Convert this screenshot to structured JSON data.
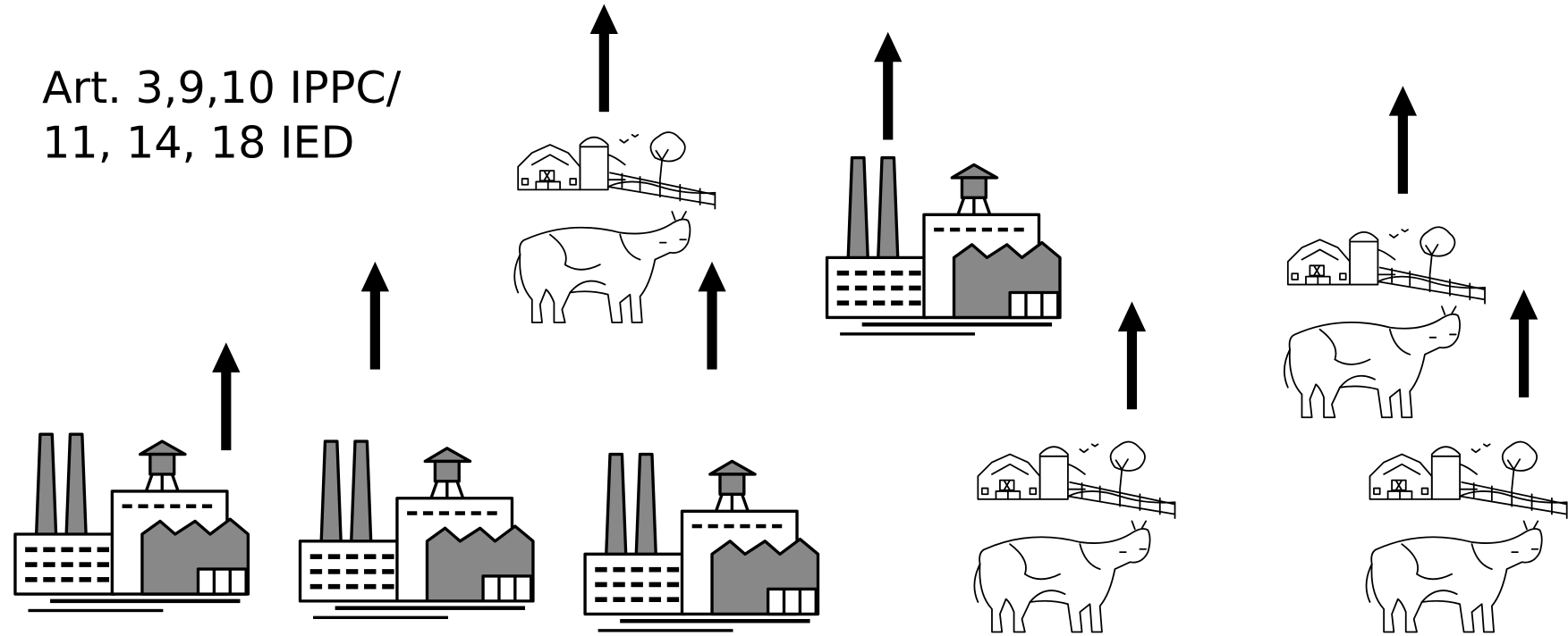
{
  "annotation": {
    "lines": [
      "Art. 3,9,10 IPPC/",
      "11, 14, 18 IED"
    ]
  }
}
